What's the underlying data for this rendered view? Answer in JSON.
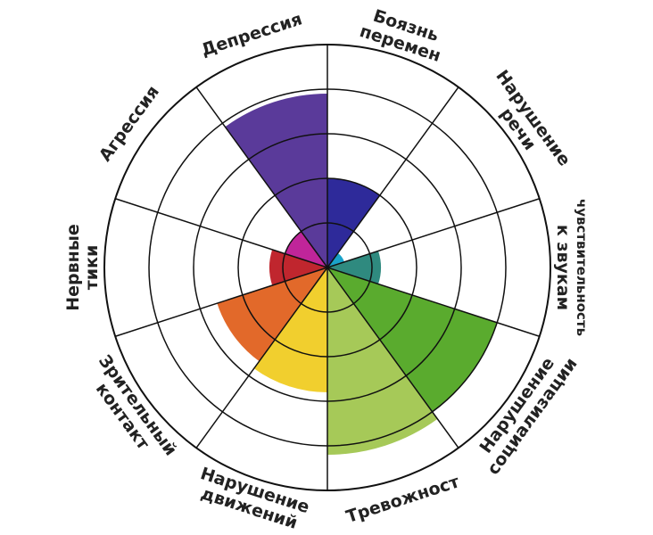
{
  "chart_data": {
    "type": "polar-area",
    "categories": [
      [
        "Боязнь",
        "перемен"
      ],
      [
        "Нарушение",
        "речи"
      ],
      [
        "чувствительность",
        "к звукам"
      ],
      [
        "Нарушение",
        "социализации"
      ],
      [
        "Тревожност"
      ],
      [
        "Нарушение",
        "движений"
      ],
      [
        "Зрительный",
        "контакт"
      ],
      [
        "Нервные",
        "тики"
      ],
      [
        "Агрессия"
      ],
      [
        "Депрессия"
      ]
    ],
    "values": [
      2,
      0.4,
      1.2,
      4,
      4.2,
      2.8,
      2.6,
      1.3,
      1,
      3.9
    ],
    "colors": [
      "#2e2a9a",
      "#1aa3c9",
      "#2f8a7f",
      "#5aab2e",
      "#a6c958",
      "#f1cf2e",
      "#e2692a",
      "#c0262e",
      "#c0259a",
      "#5a3a9a"
    ],
    "rlim": [
      0,
      5
    ],
    "rticks": [
      1,
      2,
      3,
      4,
      5
    ],
    "grid": true
  }
}
